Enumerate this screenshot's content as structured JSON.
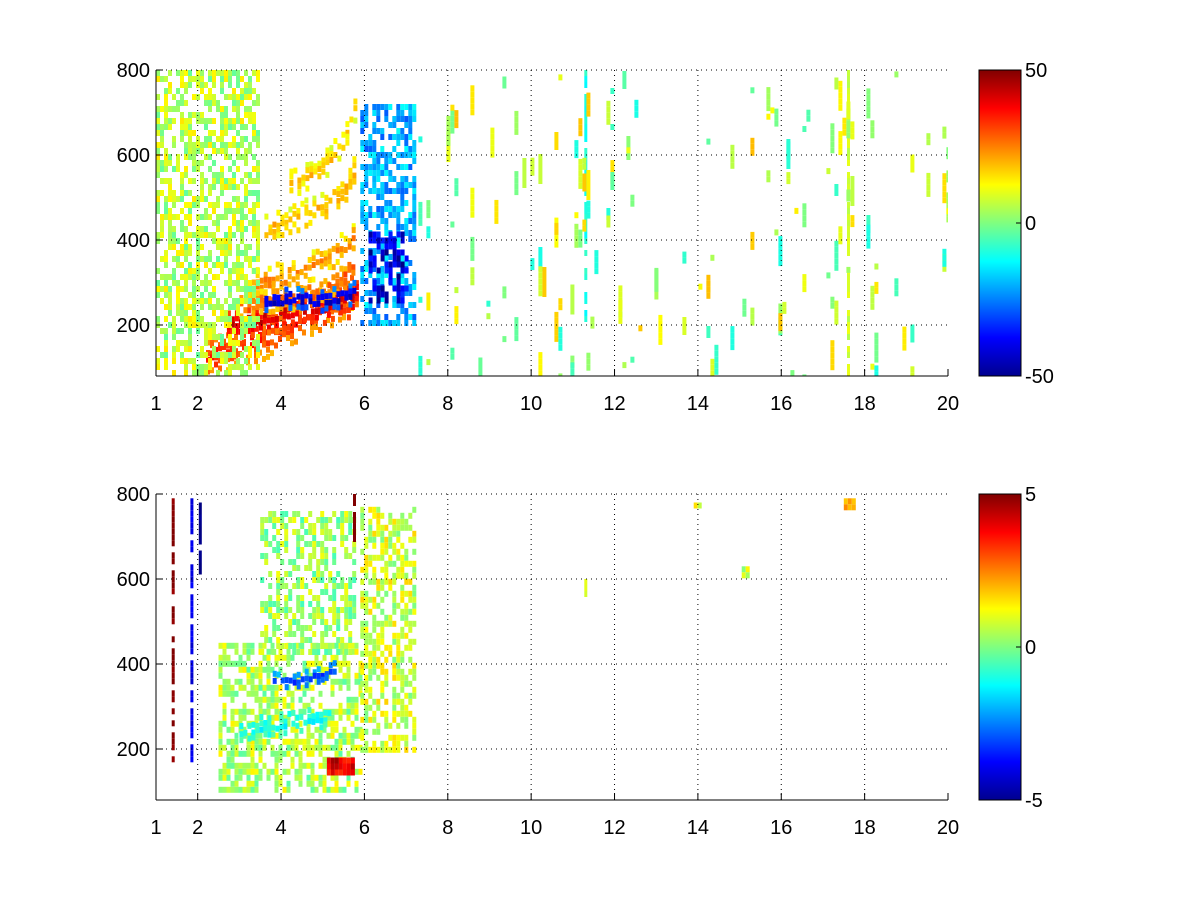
{
  "chart_data": [
    {
      "type": "heatmap",
      "title": "",
      "xlabel": "",
      "ylabel": "",
      "xlim": [
        1,
        20
      ],
      "ylim": [
        80,
        800
      ],
      "xticks": [
        1,
        2,
        4,
        6,
        8,
        10,
        12,
        14,
        16,
        18,
        20
      ],
      "yticks": [
        200,
        400,
        600,
        800
      ],
      "grid": true,
      "colormap": "jet",
      "colorbar": {
        "min": -50,
        "max": 50,
        "ticks": [
          50,
          0,
          -50
        ]
      },
      "features": [
        {
          "kind": "curve",
          "points": [
            [
              2.2,
              130
            ],
            [
              2.8,
              150
            ],
            [
              3.5,
              175
            ],
            [
              4.2,
              210
            ],
            [
              4.9,
              240
            ],
            [
              5.4,
              270
            ],
            [
              5.75,
              300
            ]
          ],
          "value": 35,
          "width": 22
        },
        {
          "kind": "curve",
          "points": [
            [
              2.7,
              210
            ],
            [
              3.2,
              215
            ],
            [
              3.8,
              225
            ],
            [
              4.5,
              240
            ],
            [
              5.1,
              250
            ],
            [
              5.6,
              260
            ],
            [
              5.8,
              290
            ]
          ],
          "value": 44,
          "width": 16
        },
        {
          "kind": "curve",
          "points": [
            [
              3.0,
              250
            ],
            [
              3.6,
              262
            ],
            [
              4.3,
              270
            ],
            [
              4.9,
              285
            ],
            [
              5.4,
              310
            ],
            [
              5.75,
              345
            ]
          ],
          "value": 30,
          "width": 14
        },
        {
          "kind": "curve",
          "points": [
            [
              3.2,
              300
            ],
            [
              3.7,
              310
            ],
            [
              4.2,
              320
            ],
            [
              4.8,
              345
            ],
            [
              5.3,
              375
            ],
            [
              5.7,
              410
            ]
          ],
          "value": 25,
          "width": 14
        },
        {
          "kind": "curve",
          "points": [
            [
              3.6,
              430
            ],
            [
              4.1,
              445
            ],
            [
              4.7,
              470
            ],
            [
              5.2,
              495
            ],
            [
              5.6,
              535
            ],
            [
              5.8,
              590
            ]
          ],
          "value": 20,
          "width": 14
        },
        {
          "kind": "curve",
          "points": [
            [
              4.2,
              540
            ],
            [
              4.7,
              560
            ],
            [
              5.2,
              600
            ],
            [
              5.5,
              650
            ],
            [
              5.75,
              720
            ],
            [
              5.8,
              790
            ]
          ],
          "value": 18,
          "width": 12
        },
        {
          "kind": "curve",
          "points": [
            [
              3.6,
              260
            ],
            [
              4.2,
              268
            ],
            [
              4.9,
              262
            ],
            [
              5.4,
              272
            ],
            [
              5.8,
              282
            ]
          ],
          "value": -45,
          "width": 10
        },
        {
          "kind": "blob",
          "x": [
            5.9,
            7.2
          ],
          "y": [
            200,
            720
          ],
          "value": -20
        },
        {
          "kind": "blob",
          "x": [
            6.1,
            7.0
          ],
          "y": [
            260,
            420
          ],
          "value": -42
        },
        {
          "kind": "blob",
          "x": [
            1.0,
            3.4
          ],
          "y": [
            80,
            800
          ],
          "value": 6
        },
        {
          "kind": "column",
          "x": 11.3,
          "y": [
            210,
            800
          ],
          "value": -10
        },
        {
          "kind": "column",
          "x": 17.6,
          "y": [
            90,
            800
          ],
          "value": 8
        },
        {
          "kind": "noise",
          "x": [
            7.2,
            20
          ],
          "y": [
            80,
            800
          ],
          "value": 0
        }
      ]
    },
    {
      "type": "heatmap",
      "title": "",
      "xlabel": "",
      "ylabel": "",
      "xlim": [
        1,
        20
      ],
      "ylim": [
        80,
        800
      ],
      "xticks": [
        1,
        2,
        4,
        6,
        8,
        10,
        12,
        14,
        16,
        18,
        20
      ],
      "yticks": [
        200,
        400,
        600,
        800
      ],
      "grid": true,
      "colormap": "jet",
      "colorbar": {
        "min": -5,
        "max": 5,
        "ticks": [
          5,
          0,
          -5
        ]
      },
      "features": [
        {
          "kind": "blob",
          "x": [
            2.5,
            5.9
          ],
          "y": [
            100,
            450
          ],
          "value": 0.5
        },
        {
          "kind": "blob",
          "x": [
            5.9,
            7.2
          ],
          "y": [
            200,
            770
          ],
          "value": 0.8
        },
        {
          "kind": "blob",
          "x": [
            3.5,
            5.8
          ],
          "y": [
            430,
            760
          ],
          "value": 0.3
        },
        {
          "kind": "curve",
          "points": [
            [
              3.8,
              365
            ],
            [
              4.3,
              360
            ],
            [
              4.9,
              375
            ],
            [
              5.3,
              390
            ]
          ],
          "value": -3.5,
          "width": 8
        },
        {
          "kind": "curve",
          "points": [
            [
              3.0,
              250
            ],
            [
              3.7,
              260
            ],
            [
              4.4,
              270
            ],
            [
              5.2,
              285
            ]
          ],
          "value": -1.2,
          "width": 10
        },
        {
          "kind": "blob",
          "x": [
            5.1,
            5.7
          ],
          "y": [
            150,
            180
          ],
          "value": 4.0
        },
        {
          "kind": "column",
          "x": 1.4,
          "y": [
            170,
            790
          ],
          "value": 5
        },
        {
          "kind": "column",
          "x": 1.85,
          "y": [
            180,
            790
          ],
          "value": -4
        },
        {
          "kind": "column",
          "x": 2.05,
          "y": [
            620,
            780
          ],
          "value": -5
        },
        {
          "kind": "column",
          "x": 5.75,
          "y": [
            700,
            800
          ],
          "value": 5
        },
        {
          "kind": "column",
          "x": 11.3,
          "y": [
            550,
            600
          ],
          "value": 0.8
        },
        {
          "kind": "blob",
          "x": [
            15.05,
            15.2
          ],
          "y": [
            610,
            630
          ],
          "value": 0.5
        },
        {
          "kind": "blob",
          "x": [
            13.9,
            14.05
          ],
          "y": [
            770,
            780
          ],
          "value": 1.5
        },
        {
          "kind": "blob",
          "x": [
            17.5,
            17.7
          ],
          "y": [
            768,
            790
          ],
          "value": 1.8
        }
      ]
    }
  ]
}
